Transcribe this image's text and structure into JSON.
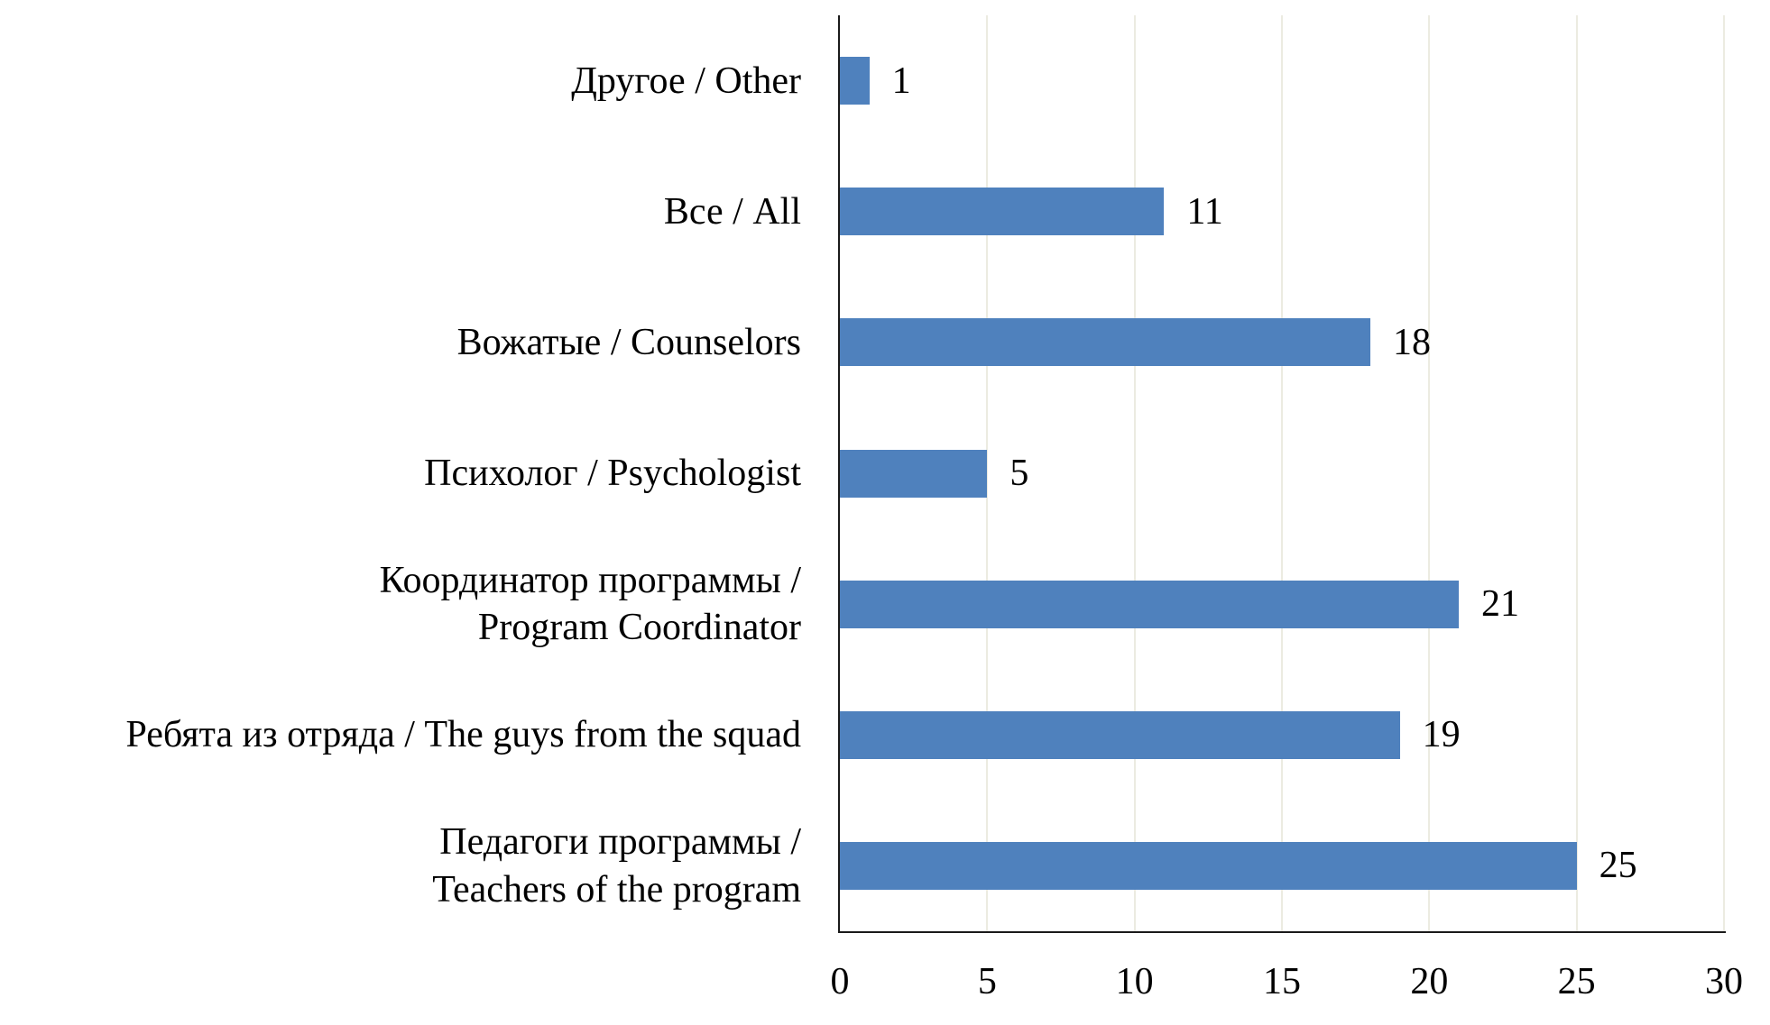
{
  "chart_data": {
    "type": "bar",
    "orientation": "horizontal",
    "title": "",
    "xlabel": "",
    "ylabel": "",
    "categories": [
      "Другое / Other",
      "Все / All",
      "Вожатые / Counselors",
      "Психолог / Psychologist",
      "Координатор программы /\nProgram Coordinator",
      "Ребята из отряда / The guys from the squad",
      "Педагоги программы /\nTeachers of the program"
    ],
    "values": [
      1,
      11,
      18,
      5,
      21,
      19,
      25
    ],
    "data_labels_shown": true,
    "xlim": [
      0,
      30
    ],
    "xticks": [
      0,
      5,
      10,
      15,
      20,
      25,
      30
    ],
    "grid": "vertical-gridlines-at-each-xtick",
    "legend": "none",
    "colors": {
      "bar": "#4F81BD",
      "gridline": "#ECEBE1",
      "axis": "#1A1A1A",
      "text": "#000000",
      "background": "#FFFFFF"
    }
  }
}
